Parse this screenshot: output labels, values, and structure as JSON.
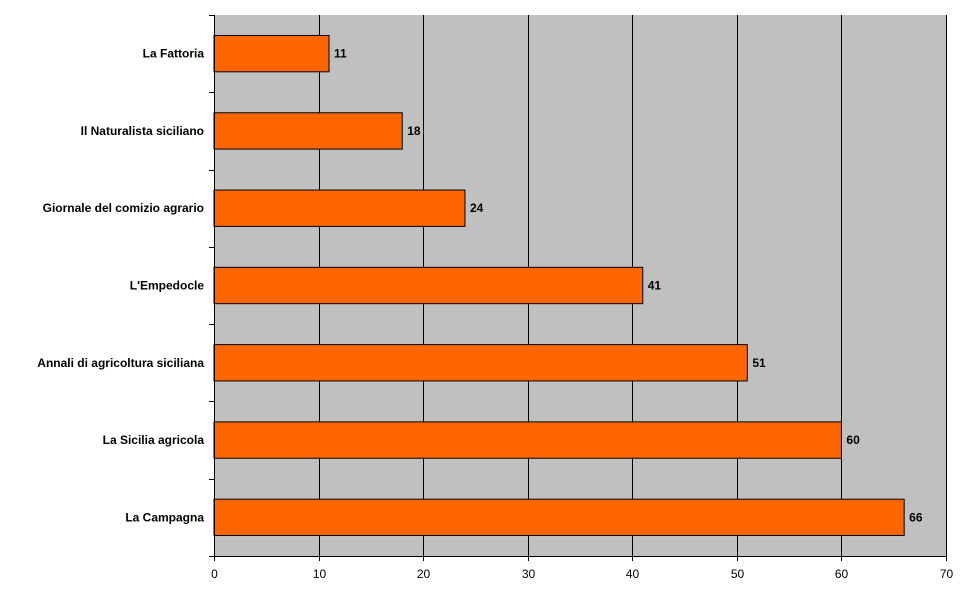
{
  "chart_data": {
    "type": "bar",
    "orientation": "horizontal",
    "title": "",
    "xlabel": "",
    "ylabel": "",
    "categories": [
      "La Fattoria",
      "Il Naturalista siciliano",
      "Giornale del comizio agrario",
      "L'Empedocle",
      "Annali di agricoltura siciliana",
      "La Sicilia agricola",
      "La Campagna"
    ],
    "values": [
      11,
      18,
      24,
      41,
      51,
      60,
      66
    ],
    "xlim": [
      0,
      70
    ],
    "xticks": [
      "0",
      "10",
      "20",
      "30",
      "40",
      "50",
      "60",
      "70"
    ],
    "grid": true,
    "legend": "none",
    "colors": {
      "bar": "#ff6600",
      "bar_border": "#000000",
      "plot_background": "#c0c0c0",
      "gridline": "#000000"
    }
  }
}
